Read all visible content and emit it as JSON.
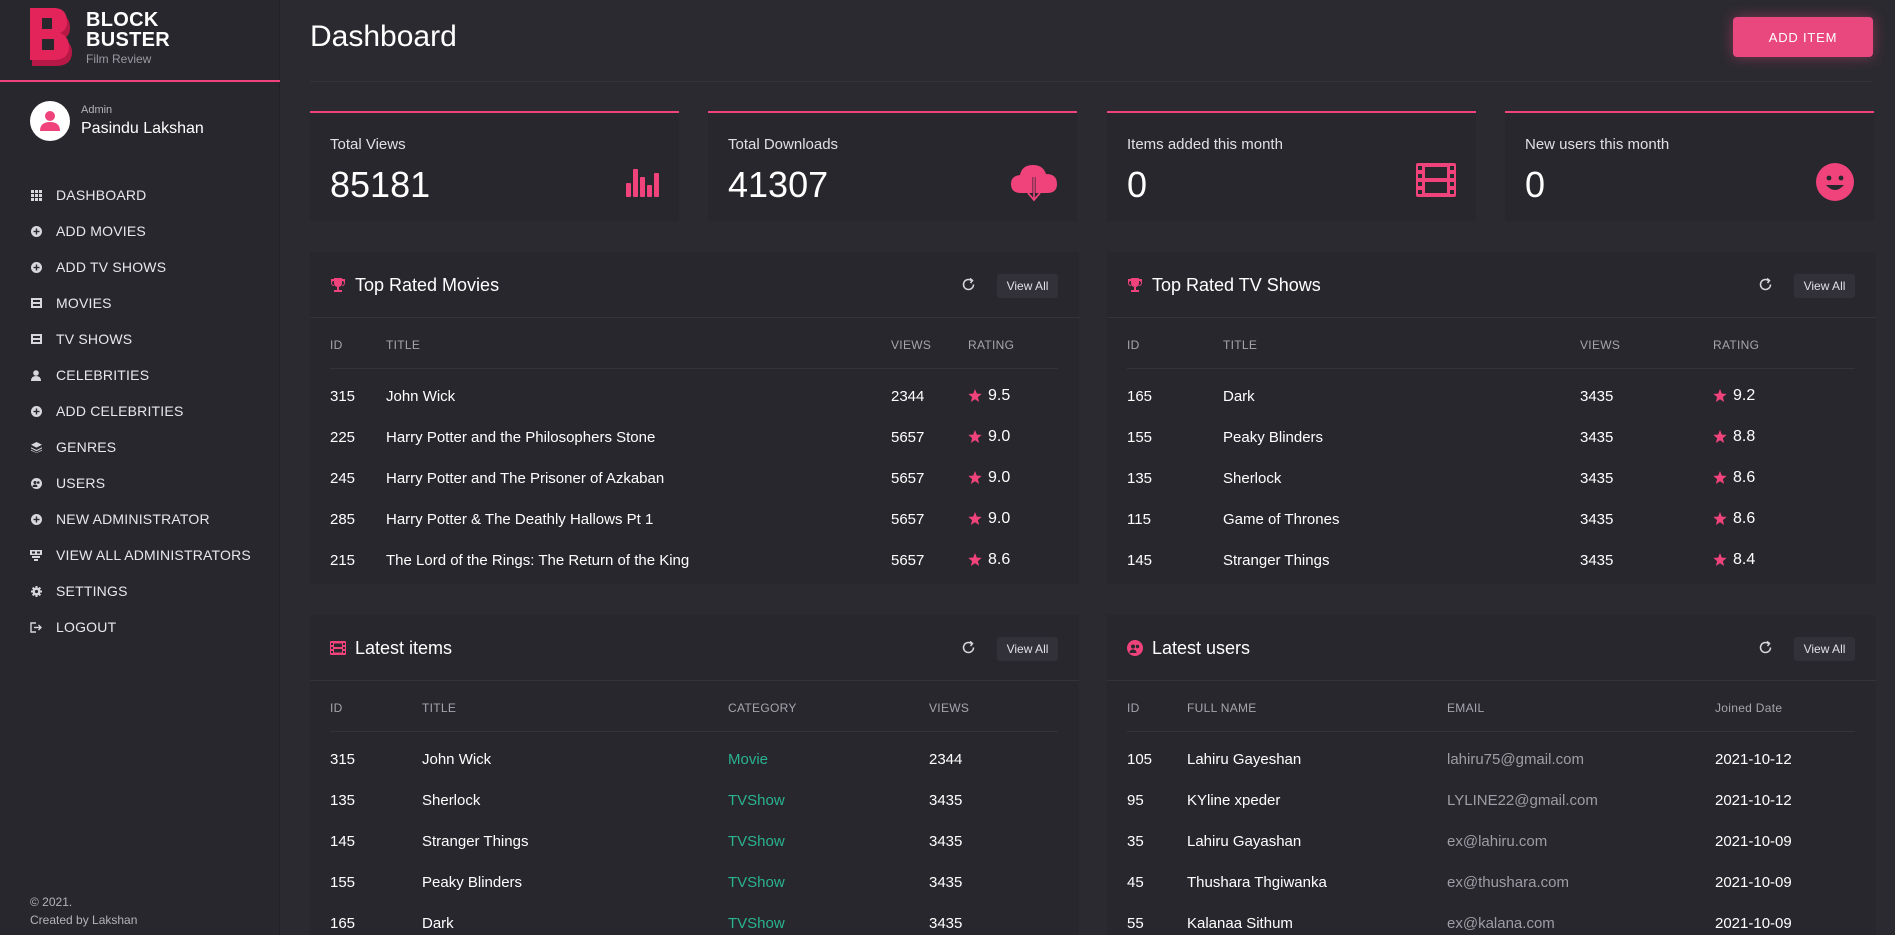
{
  "brand": {
    "line1": "BLOCK",
    "line2": "BUSTER",
    "sub": "Film Review",
    "accent": "#f0437b"
  },
  "profile": {
    "role": "Admin",
    "name": "Pasindu Lakshan"
  },
  "nav": [
    {
      "label": "DASHBOARD",
      "icon": "grid-icon"
    },
    {
      "label": "ADD MOVIES",
      "icon": "plus-circle-icon"
    },
    {
      "label": "ADD TV SHOWS",
      "icon": "plus-circle-icon"
    },
    {
      "label": "MOVIES",
      "icon": "film-icon"
    },
    {
      "label": "TV SHOWS",
      "icon": "film-icon"
    },
    {
      "label": "CELEBRITIES",
      "icon": "person-icon"
    },
    {
      "label": "ADD CELEBRITIES",
      "icon": "plus-circle-icon"
    },
    {
      "label": "GENRES",
      "icon": "layers-icon"
    },
    {
      "label": "USERS",
      "icon": "users-icon"
    },
    {
      "label": "NEW ADMINISTRATOR",
      "icon": "plus-circle-icon"
    },
    {
      "label": "VIEW ALL ADMINISTRATORS",
      "icon": "admins-icon"
    },
    {
      "label": "SETTINGS",
      "icon": "gear-icon"
    },
    {
      "label": "LOGOUT",
      "icon": "logout-icon"
    }
  ],
  "footer": {
    "line1": "© 2021.",
    "line2": "Created by Lakshan"
  },
  "header": {
    "title": "Dashboard",
    "add_button": "ADD ITEM"
  },
  "stats": [
    {
      "label": "Total Views",
      "value": "85181",
      "icon": "bar-chart-icon"
    },
    {
      "label": "Total Downloads",
      "value": "41307",
      "icon": "cloud-download-icon"
    },
    {
      "label": "Items added this month",
      "value": "0",
      "icon": "film-strip-icon"
    },
    {
      "label": "New users this month",
      "value": "0",
      "icon": "smiley-icon"
    }
  ],
  "view_all_label": "View All",
  "top_movies": {
    "title": "Top Rated Movies",
    "columns": [
      "ID",
      "TITLE",
      "VIEWS",
      "RATING"
    ],
    "rows": [
      {
        "id": "315",
        "title": "John Wick",
        "views": "2344",
        "rating": "9.5"
      },
      {
        "id": "225",
        "title": "Harry Potter and the Philosophers Stone",
        "views": "5657",
        "rating": "9.0"
      },
      {
        "id": "245",
        "title": "Harry Potter and The Prisoner of Azkaban",
        "views": "5657",
        "rating": "9.0"
      },
      {
        "id": "285",
        "title": "Harry Potter & The Deathly Hallows Pt 1",
        "views": "5657",
        "rating": "9.0"
      },
      {
        "id": "215",
        "title": "The Lord of the Rings: The Return of the King",
        "views": "5657",
        "rating": "8.6"
      }
    ]
  },
  "top_tv": {
    "title": "Top Rated TV Shows",
    "columns": [
      "ID",
      "TITLE",
      "VIEWS",
      "RATING"
    ],
    "rows": [
      {
        "id": "165",
        "title": "Dark",
        "views": "3435",
        "rating": "9.2"
      },
      {
        "id": "155",
        "title": "Peaky Blinders",
        "views": "3435",
        "rating": "8.8"
      },
      {
        "id": "135",
        "title": "Sherlock",
        "views": "3435",
        "rating": "8.6"
      },
      {
        "id": "115",
        "title": "Game of Thrones",
        "views": "3435",
        "rating": "8.6"
      },
      {
        "id": "145",
        "title": "Stranger Things",
        "views": "3435",
        "rating": "8.4"
      }
    ]
  },
  "latest_items": {
    "title": "Latest items",
    "columns": [
      "ID",
      "TITLE",
      "CATEGORY",
      "VIEWS"
    ],
    "rows": [
      {
        "id": "315",
        "title": "John Wick",
        "category": "Movie",
        "views": "2344"
      },
      {
        "id": "135",
        "title": "Sherlock",
        "category": "TVShow",
        "views": "3435"
      },
      {
        "id": "145",
        "title": "Stranger Things",
        "category": "TVShow",
        "views": "3435"
      },
      {
        "id": "155",
        "title": "Peaky Blinders",
        "category": "TVShow",
        "views": "3435"
      },
      {
        "id": "165",
        "title": "Dark",
        "category": "TVShow",
        "views": "3435"
      }
    ]
  },
  "latest_users": {
    "title": "Latest users",
    "columns": [
      "ID",
      "FULL NAME",
      "EMAIL",
      "Joined Date"
    ],
    "rows": [
      {
        "id": "105",
        "name": "Lahiru Gayeshan",
        "email": "lahiru75@gmail.com",
        "joined": "2021-10-12"
      },
      {
        "id": "95",
        "name": "KYline xpeder",
        "email": "LYLINE22@gmail.com",
        "joined": "2021-10-12"
      },
      {
        "id": "35",
        "name": "Lahiru Gayashan",
        "email": "ex@lahiru.com",
        "joined": "2021-10-09"
      },
      {
        "id": "45",
        "name": "Thushara Thgiwanka",
        "email": "ex@thushara.com",
        "joined": "2021-10-09"
      },
      {
        "id": "55",
        "name": "Kalanaa Sithum",
        "email": "ex@kalana.com",
        "joined": "2021-10-09"
      }
    ]
  }
}
